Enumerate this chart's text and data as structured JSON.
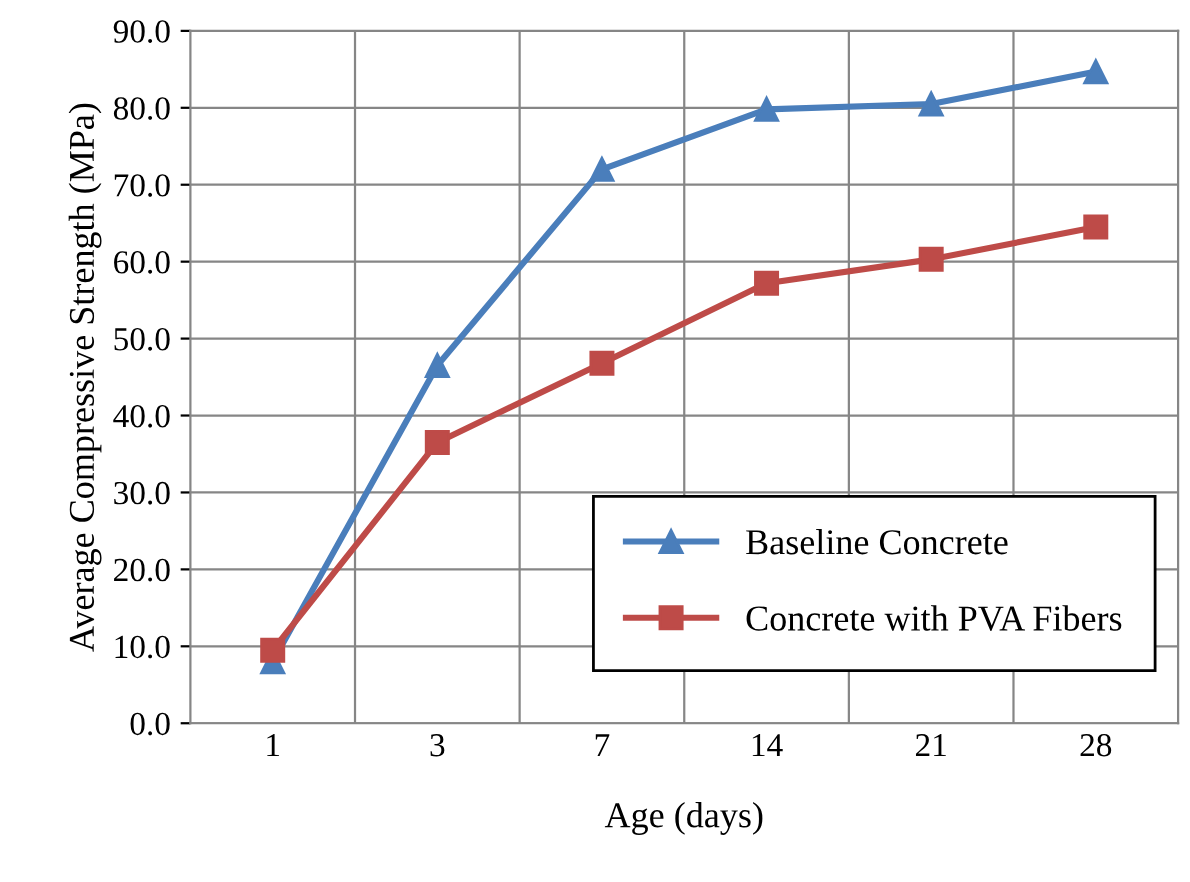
{
  "chart_data": {
    "type": "line",
    "xlabel": "Age (days)",
    "ylabel": "Average Compressive Strength (MPa)",
    "categories": [
      "1",
      "3",
      "7",
      "14",
      "21",
      "28"
    ],
    "series": [
      {
        "name": "Baseline Concrete",
        "color": "#4a7ebb",
        "marker": "triangle",
        "values": [
          8.0,
          46.5,
          72.0,
          79.8,
          80.5,
          84.7
        ]
      },
      {
        "name": "Concrete with PVA Fibers",
        "color": "#be4b48",
        "marker": "square",
        "values": [
          9.5,
          36.5,
          46.8,
          57.2,
          60.3,
          64.5
        ]
      }
    ],
    "ylim": [
      0,
      90
    ],
    "yticks": [
      {
        "value": 0,
        "label": "0.0"
      },
      {
        "value": 10,
        "label": "10.0"
      },
      {
        "value": 20,
        "label": "20.0"
      },
      {
        "value": 30,
        "label": "30.0"
      },
      {
        "value": 40,
        "label": "40.0"
      },
      {
        "value": 50,
        "label": "50.0"
      },
      {
        "value": 60,
        "label": "60.0"
      },
      {
        "value": 70,
        "label": "70.0"
      },
      {
        "value": 80,
        "label": "80.0"
      },
      {
        "value": 90,
        "label": "90.0"
      }
    ],
    "grid": true,
    "legend": "bottom right",
    "line_style": "solid"
  }
}
